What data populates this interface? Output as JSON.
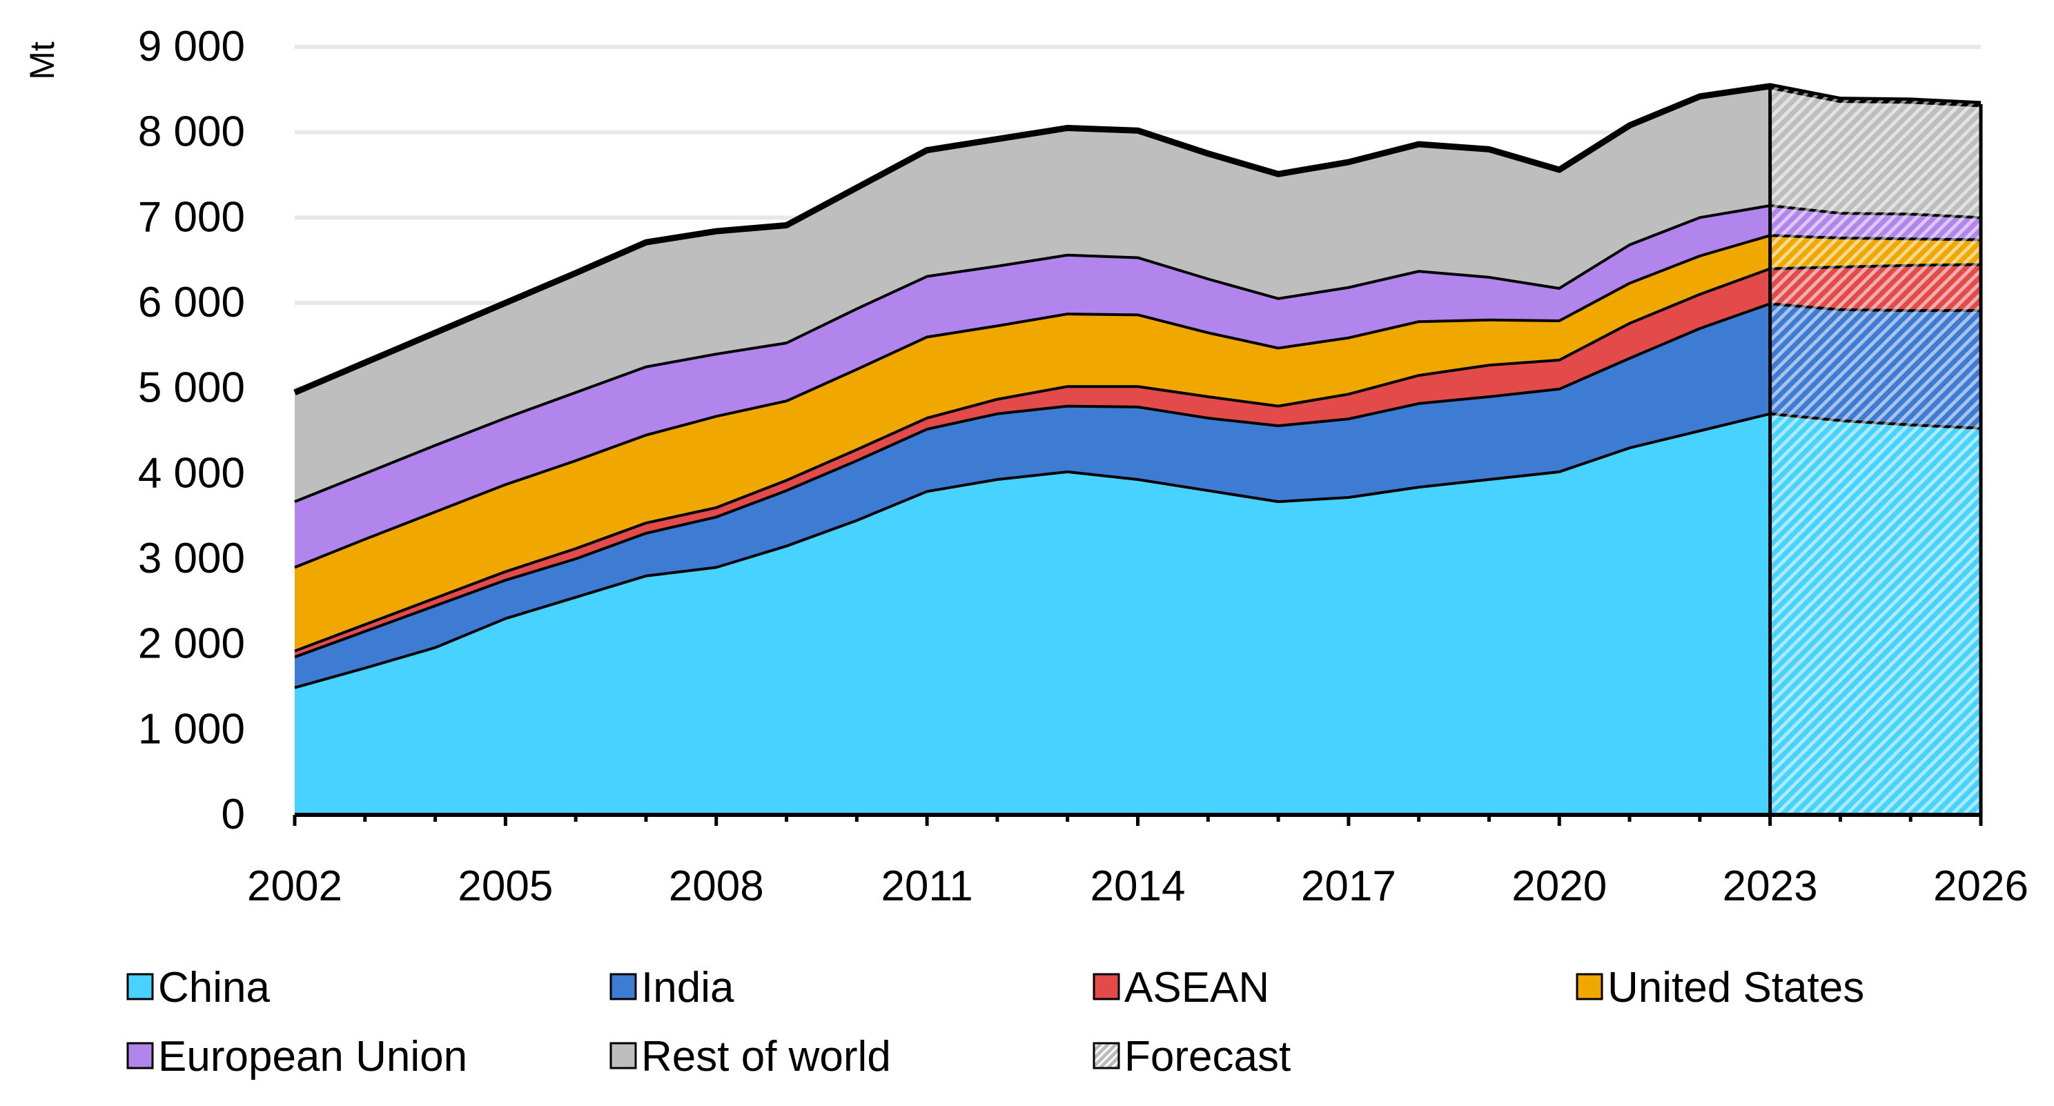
{
  "chart_data": {
    "type": "area",
    "stacked": true,
    "ylabel": "Mt",
    "xlabel": "",
    "ylim": [
      0,
      9000
    ],
    "yticks": [
      0,
      1000,
      2000,
      3000,
      4000,
      5000,
      6000,
      7000,
      8000,
      9000
    ],
    "ytick_labels": [
      "0",
      "1 000",
      "2 000",
      "3 000",
      "4 000",
      "5 000",
      "6 000",
      "7 000",
      "8 000",
      "9 000"
    ],
    "xtick_labels": [
      "2002",
      "2005",
      "2008",
      "2011",
      "2014",
      "2017",
      "2020",
      "2023",
      "2026"
    ],
    "grid": true,
    "legend_position": "bottom",
    "forecast_start": 2023,
    "x": [
      2002,
      2003,
      2004,
      2005,
      2006,
      2007,
      2008,
      2009,
      2010,
      2011,
      2012,
      2013,
      2014,
      2015,
      2016,
      2017,
      2018,
      2019,
      2020,
      2021,
      2022,
      2023,
      2024,
      2025,
      2026
    ],
    "series": [
      {
        "name": "China",
        "color": "#48D2FF",
        "values": [
          1490,
          1720,
          1960,
          2300,
          2550,
          2800,
          2900,
          3150,
          3450,
          3790,
          3930,
          4020,
          3930,
          3800,
          3670,
          3720,
          3840,
          3930,
          4020,
          4300,
          4500,
          4700,
          4620,
          4570,
          4530
        ]
      },
      {
        "name": "India",
        "color": "#3E7BD3",
        "values": [
          360,
          430,
          490,
          450,
          450,
          500,
          590,
          650,
          700,
          730,
          770,
          770,
          850,
          850,
          890,
          920,
          980,
          970,
          970,
          1050,
          1200,
          1290,
          1300,
          1340,
          1380
        ]
      },
      {
        "name": "ASEAN",
        "color": "#E34B4B",
        "values": [
          70,
          80,
          90,
          100,
          120,
          120,
          110,
          120,
          130,
          130,
          170,
          230,
          240,
          250,
          230,
          290,
          330,
          370,
          340,
          410,
          400,
          410,
          500,
          530,
          540
        ]
      },
      {
        "name": "United States",
        "color": "#F0A800",
        "values": [
          980,
          1000,
          1010,
          1020,
          1030,
          1030,
          1070,
          930,
          940,
          950,
          860,
          850,
          840,
          750,
          680,
          660,
          630,
          530,
          460,
          470,
          450,
          390,
          340,
          310,
          290
        ]
      },
      {
        "name": "European Union",
        "color": "#B185EC",
        "values": [
          770,
          770,
          780,
          780,
          800,
          800,
          730,
          680,
          710,
          710,
          700,
          690,
          670,
          630,
          580,
          590,
          590,
          500,
          380,
          450,
          450,
          350,
          290,
          290,
          260
        ]
      },
      {
        "name": "Rest of world",
        "color": "#BEBEBE",
        "values": [
          1280,
          1300,
          1320,
          1350,
          1400,
          1460,
          1440,
          1380,
          1420,
          1480,
          1490,
          1490,
          1490,
          1470,
          1460,
          1470,
          1490,
          1500,
          1390,
          1400,
          1420,
          1400,
          1330,
          1330,
          1330
        ]
      }
    ],
    "legend": [
      "China",
      "India",
      "ASEAN",
      "United States",
      "European Union",
      "Rest of world",
      "Forecast"
    ]
  }
}
